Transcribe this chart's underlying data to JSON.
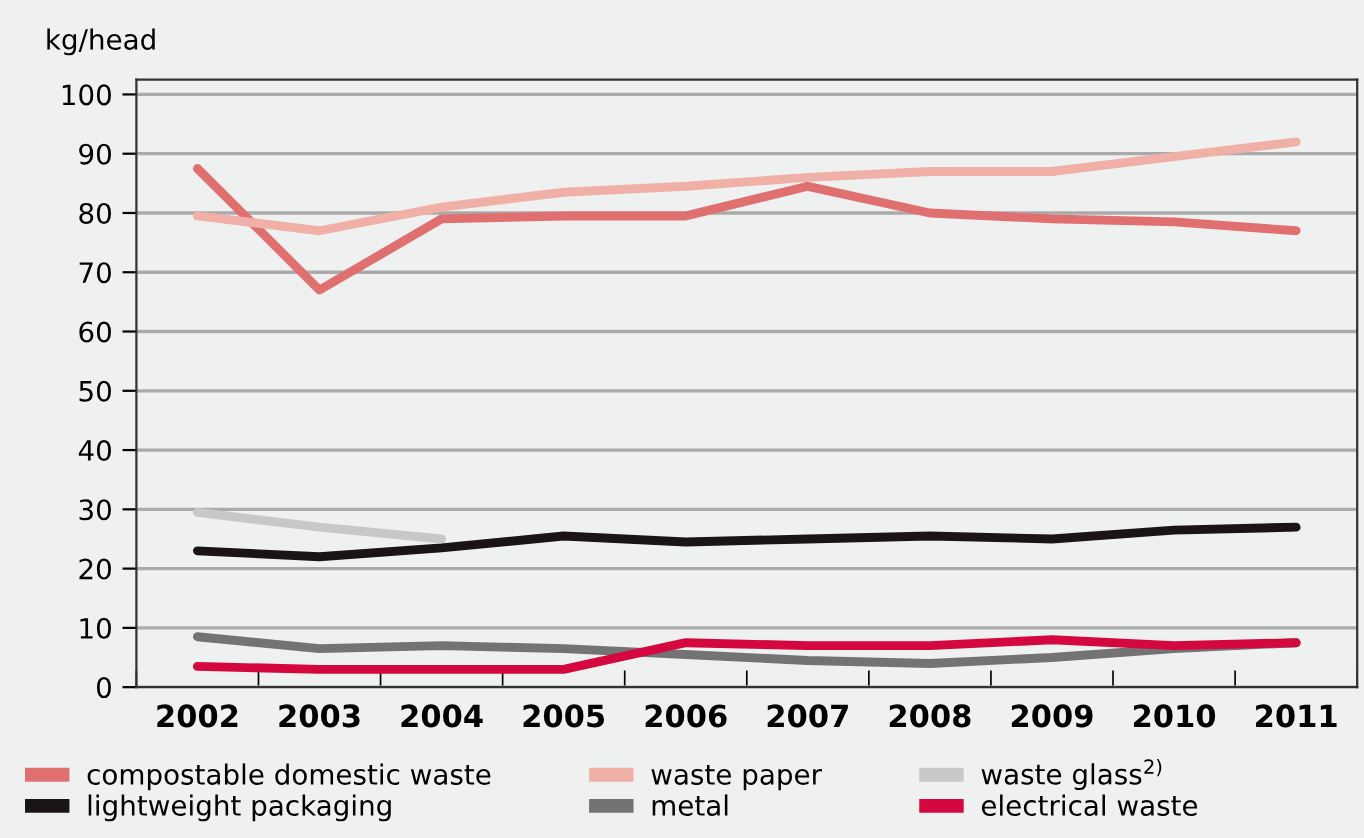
{
  "chart_data": {
    "type": "line",
    "ylabel": "kg/head",
    "categories": [
      "2002",
      "2003",
      "2004",
      "2005",
      "2006",
      "2007",
      "2008",
      "2009",
      "2010",
      "2011"
    ],
    "series": [
      {
        "name": "compostable domestic waste",
        "color": "#e07070",
        "values": [
          87.5,
          67,
          79,
          79.5,
          79.5,
          84.5,
          80,
          79,
          78.5,
          77
        ]
      },
      {
        "name": "waste paper",
        "color": "#f0b0a8",
        "values": [
          79.5,
          77,
          81,
          83.5,
          84.5,
          86,
          87,
          87,
          89.5,
          92
        ]
      },
      {
        "name": "waste glass$^{2)}$",
        "color": "#c8c8c8",
        "values": [
          29.5,
          27,
          25,
          null,
          null,
          null,
          null,
          null,
          null,
          null
        ]
      },
      {
        "name": "lightweight packaging",
        "color": "#1a1417",
        "values": [
          23,
          22,
          23.5,
          25.5,
          24.5,
          25,
          25.5,
          25,
          26.5,
          27
        ]
      },
      {
        "name": "metal",
        "color": "#737373",
        "values": [
          8.5,
          6.5,
          7,
          6.5,
          5.5,
          4.5,
          4,
          5,
          6.5,
          7.5
        ]
      },
      {
        "name": "electrical waste",
        "color": "#d4083f",
        "values": [
          3.5,
          3,
          3,
          3,
          7.5,
          7,
          7,
          8,
          7,
          7.5
        ]
      }
    ],
    "ylim": [
      0,
      102.5
    ],
    "yticks": [
      0,
      10,
      20,
      30,
      40,
      50,
      60,
      70,
      80,
      90,
      100
    ],
    "grid": "y",
    "legend": "bottom",
    "marker": "none",
    "line_style": "solid"
  }
}
